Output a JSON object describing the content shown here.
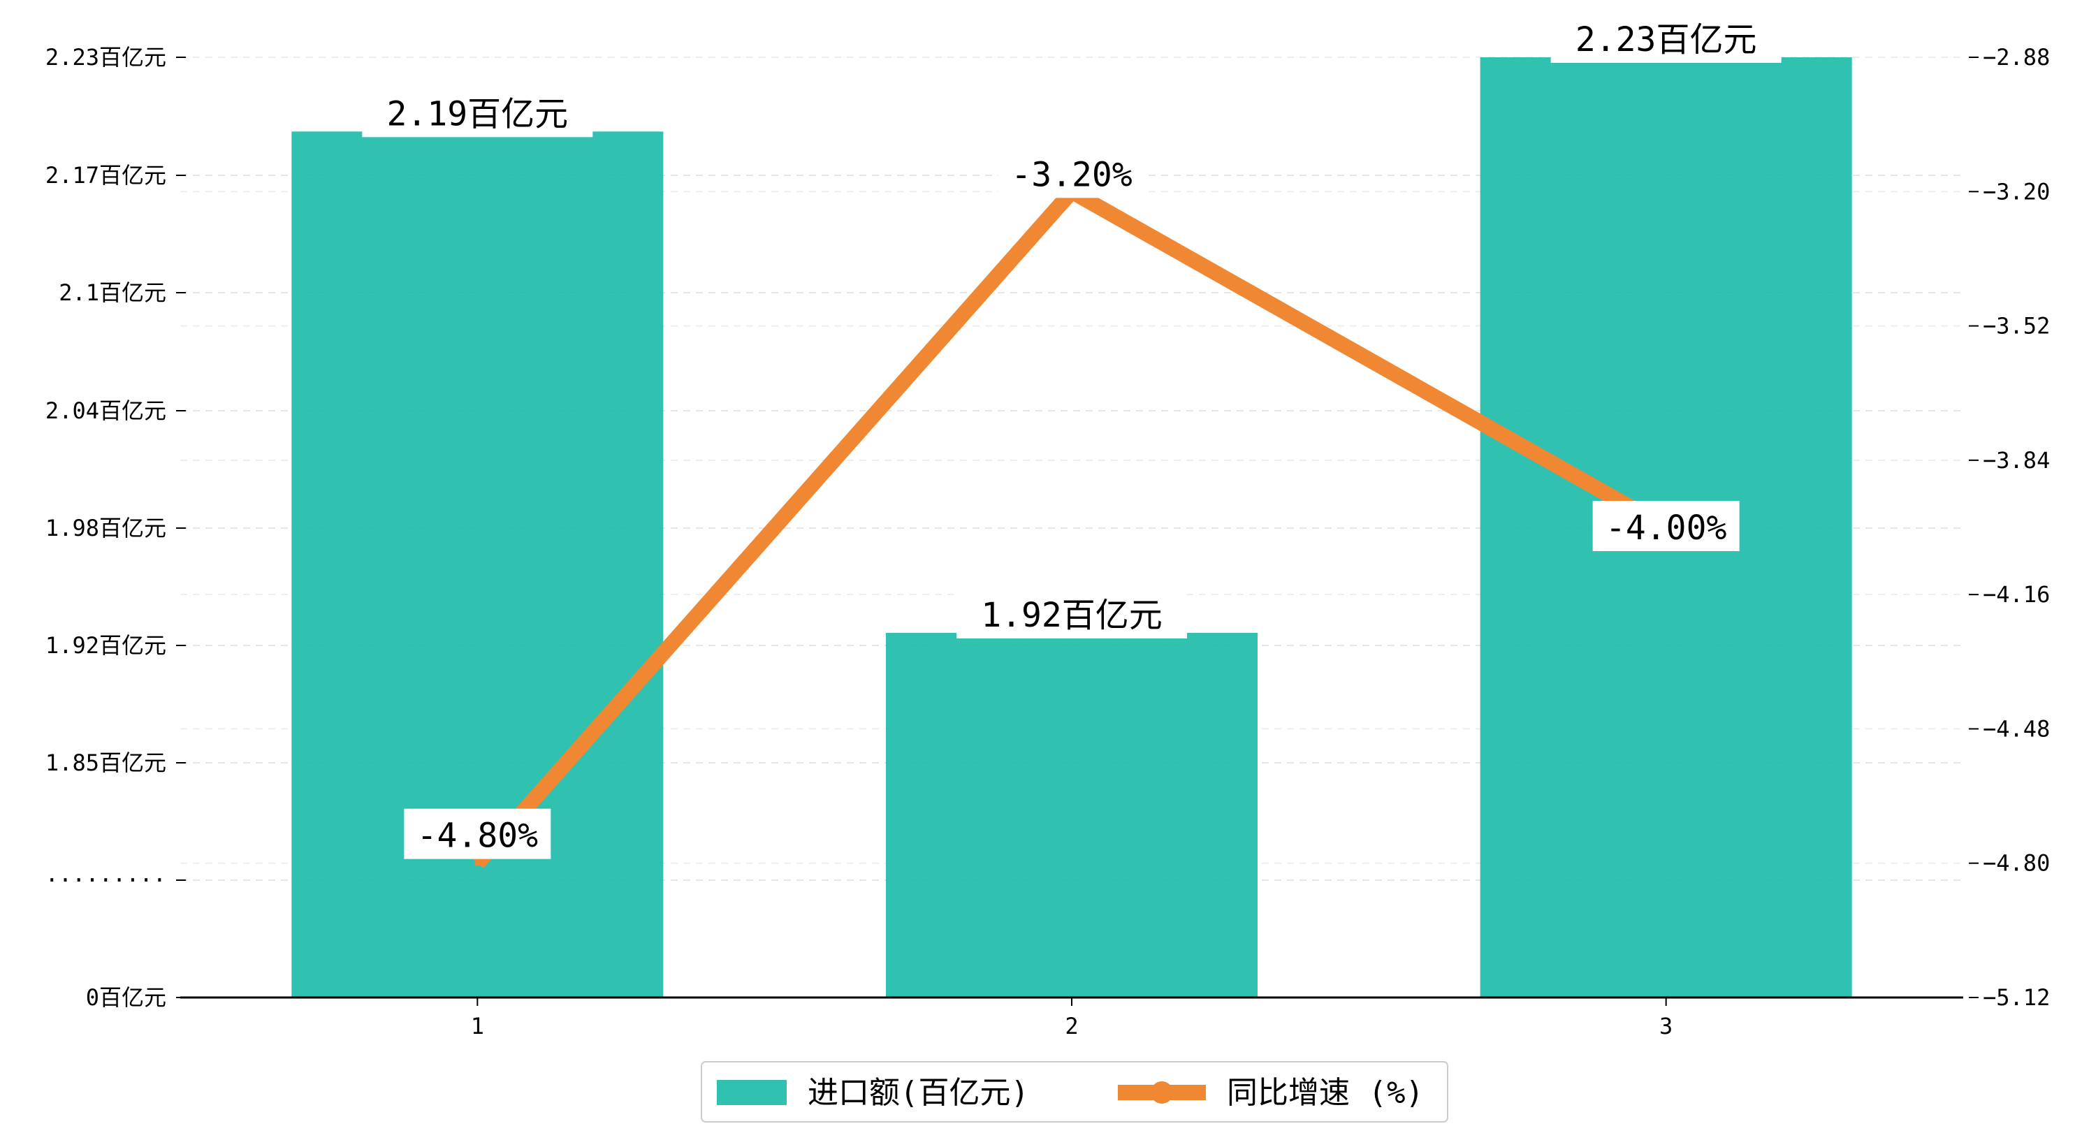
{
  "chart_data": {
    "type": "bar+line",
    "categories": [
      "1",
      "2",
      "3"
    ],
    "series": [
      {
        "name": "进口额(百亿元)",
        "type": "bar",
        "axis": "left",
        "values": [
          2.19,
          1.92,
          2.23
        ],
        "labels": [
          "2.19百亿元",
          "1.92百亿元",
          "2.23百亿元"
        ],
        "color": "#1ABAA8"
      },
      {
        "name": "同比增速 (%)",
        "type": "line",
        "axis": "right",
        "values": [
          -4.8,
          -3.2,
          -4.0
        ],
        "labels": [
          "-4.80%",
          "-3.20%",
          "-4.00%"
        ],
        "color": "#F08732"
      }
    ],
    "left_axis": {
      "ticks": [
        {
          "label": "0百亿元",
          "value": 0
        },
        {
          "label": "·········",
          "value": null
        },
        {
          "label": "1.85百亿元",
          "value": 1.85
        },
        {
          "label": "1.92百亿元",
          "value": 1.92
        },
        {
          "label": "1.98百亿元",
          "value": 1.98
        },
        {
          "label": "2.04百亿元",
          "value": 2.04
        },
        {
          "label": "2.1百亿元",
          "value": 2.1
        },
        {
          "label": "2.17百亿元",
          "value": 2.17
        },
        {
          "label": "2.23百亿元",
          "value": 2.23
        }
      ],
      "broken": true
    },
    "right_axis": {
      "ticks": [
        "-5.12",
        "-4.80",
        "-4.48",
        "-4.16",
        "-3.84",
        "-3.52",
        "-3.20",
        "-2.88"
      ],
      "ylim": [
        -5.12,
        -2.88
      ]
    },
    "legend": {
      "position": "bottom-center"
    },
    "grid": true
  }
}
